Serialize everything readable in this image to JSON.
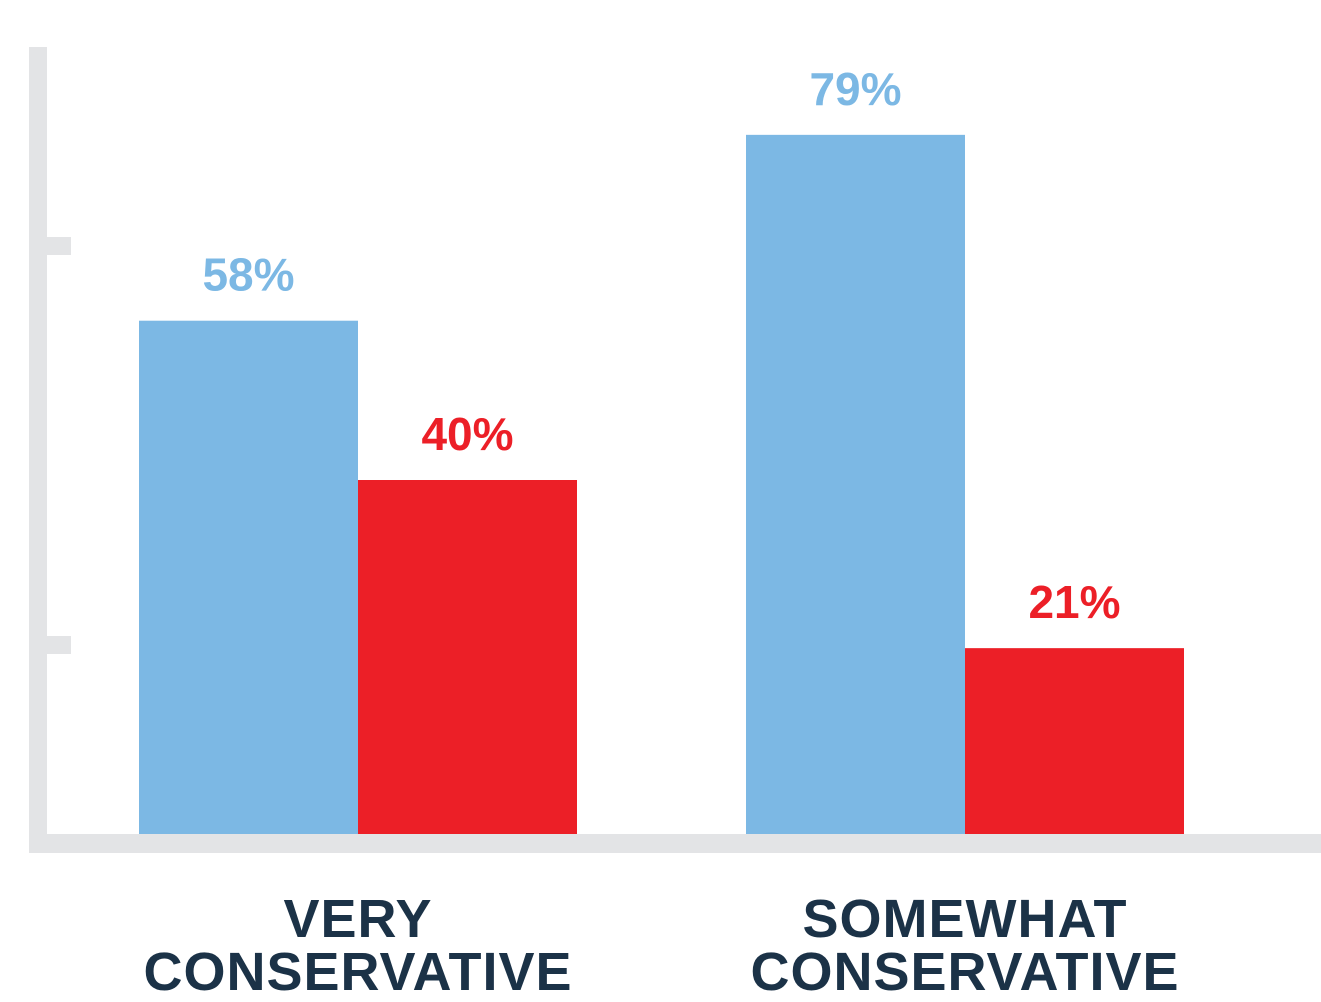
{
  "chart_data": {
    "type": "bar",
    "categories": [
      "VERY\nCONSERVATIVE",
      "SOMEWHAT\nCONSERVATIVE"
    ],
    "series": [
      {
        "values": [
          58,
          79
        ],
        "labels": [
          "58%",
          "79%"
        ],
        "color": "#7cb8e4"
      },
      {
        "values": [
          40,
          21
        ],
        "labels": [
          "40%",
          "21%"
        ],
        "color": "#ec1f27"
      }
    ],
    "ylim": [
      0,
      80
    ],
    "grid": false,
    "axis_color": "#e3e4e6",
    "category_label_color": "#1b3247"
  }
}
